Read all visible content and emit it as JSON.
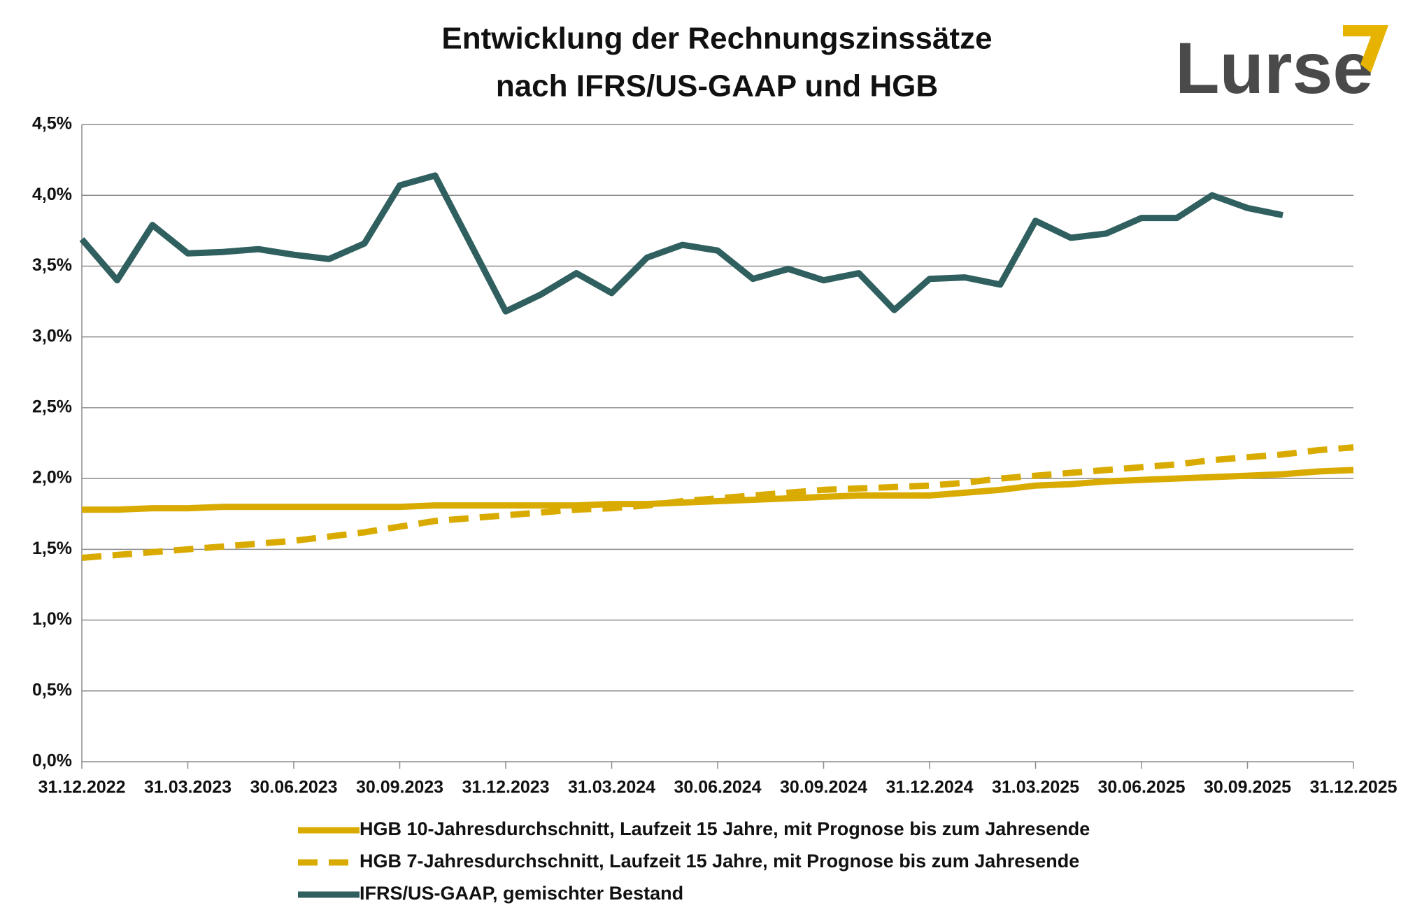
{
  "chart_data": {
    "type": "line",
    "title": [
      "Entwicklung der Rechnungszinssätze",
      "nach IFRS/US-GAAP und HGB"
    ],
    "logo": "Lurse",
    "categories": [
      "31.12.2022",
      null,
      null,
      "31.03.2023",
      null,
      null,
      "30.06.2023",
      null,
      null,
      "30.09.2023",
      null,
      null,
      "31.12.2023",
      null,
      null,
      "31.03.2024",
      null,
      null,
      "30.06.2024",
      null,
      null,
      "30.09.2024",
      null,
      null,
      "31.12.2024",
      null,
      null,
      "31.03.2025",
      null,
      null,
      "30.06.2025",
      null,
      null,
      "30.09.2025",
      null,
      null,
      "31.12.2025"
    ],
    "series": [
      {
        "name": "HGB 10-Jahresdurchschnitt, Laufzeit 15 Jahre, mit Prognose bis zum Jahresende",
        "color": "#d9ab00",
        "dashed": false,
        "values": [
          1.78,
          1.78,
          1.79,
          1.79,
          1.8,
          1.8,
          1.8,
          1.8,
          1.8,
          1.8,
          1.81,
          1.81,
          1.81,
          1.81,
          1.81,
          1.82,
          1.82,
          1.83,
          1.84,
          1.85,
          1.86,
          1.87,
          1.88,
          1.88,
          1.88,
          1.9,
          1.92,
          1.95,
          1.96,
          1.98,
          1.99,
          2.0,
          2.01,
          2.02,
          2.03,
          2.05,
          2.06
        ]
      },
      {
        "name": "HGB 7-Jahresdurchschnitt, Laufzeit 15 Jahre, mit Prognose bis zum Jahresende",
        "color": "#d9ab00",
        "dashed": true,
        "values": [
          1.44,
          1.46,
          1.48,
          1.5,
          1.52,
          1.54,
          1.56,
          1.59,
          1.62,
          1.66,
          1.7,
          1.72,
          1.74,
          1.76,
          1.78,
          1.79,
          1.81,
          1.84,
          1.86,
          1.88,
          1.9,
          1.92,
          1.93,
          1.94,
          1.95,
          1.97,
          2.0,
          2.02,
          2.04,
          2.06,
          2.08,
          2.1,
          2.13,
          2.15,
          2.17,
          2.2,
          2.22
        ]
      },
      {
        "name": "IFRS/US-GAAP, gemischter Bestand",
        "color": "#2f5f5e",
        "dashed": false,
        "values": [
          3.69,
          3.4,
          3.79,
          3.59,
          3.6,
          3.62,
          3.58,
          3.55,
          3.66,
          4.07,
          4.14,
          3.66,
          3.18,
          3.3,
          3.45,
          3.31,
          3.56,
          3.65,
          3.61,
          3.41,
          3.48,
          3.4,
          3.45,
          3.19,
          3.41,
          3.42,
          3.37,
          3.82,
          3.7,
          3.73,
          3.84,
          3.84,
          4.0,
          3.91,
          3.86,
          null,
          null
        ]
      }
    ],
    "ylim": [
      0,
      4.5
    ],
    "yticks": [
      {
        "value": 0,
        "label": "0,0%"
      },
      {
        "value": 0.5,
        "label": "0,5%"
      },
      {
        "value": 1,
        "label": "1,0%"
      },
      {
        "value": 1.5,
        "label": "1,5%"
      },
      {
        "value": 2,
        "label": "2,0%"
      },
      {
        "value": 2.5,
        "label": "2,5%"
      },
      {
        "value": 3,
        "label": "3,0%"
      },
      {
        "value": 3.5,
        "label": "3,5%"
      },
      {
        "value": 4,
        "label": "4,0%"
      },
      {
        "value": 4.5,
        "label": "4,5%"
      }
    ],
    "grid": true
  }
}
